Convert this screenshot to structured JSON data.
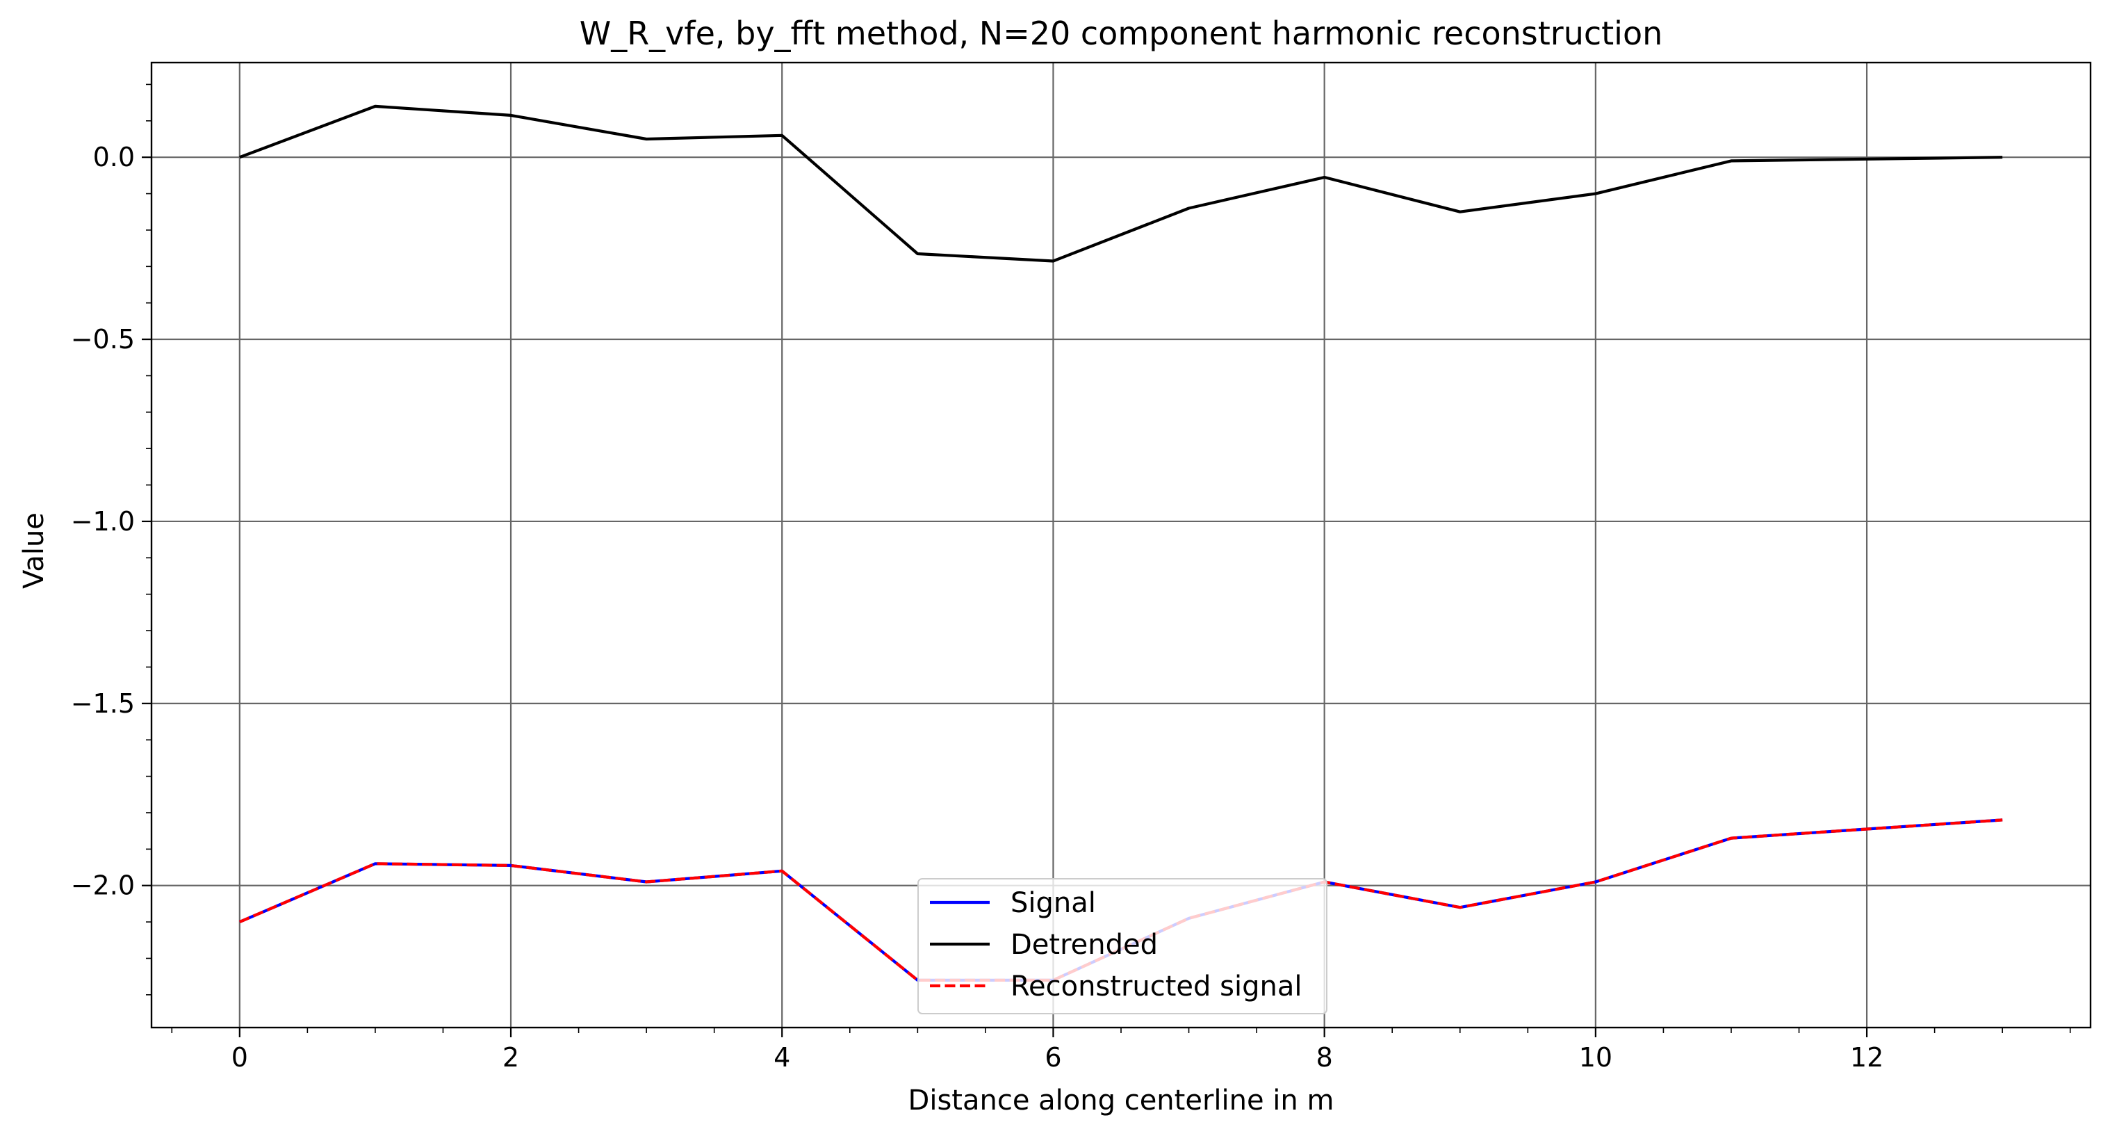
{
  "chart_data": {
    "type": "line",
    "title": "W_R_vfe, by_fft method, N=20 component harmonic reconstruction",
    "xlabel": "Distance along centerline in m",
    "ylabel": "Value",
    "xlim": [
      -0.65,
      13.65
    ],
    "ylim": [
      -2.39,
      0.26
    ],
    "x_ticks": [
      0,
      2,
      4,
      6,
      8,
      10,
      12
    ],
    "x_tick_labels": [
      "0",
      "2",
      "4",
      "6",
      "8",
      "10",
      "12"
    ],
    "y_ticks": [
      0.0,
      -0.5,
      -1.0,
      -1.5,
      -2.0
    ],
    "y_tick_labels": [
      "0.0",
      "−0.5",
      "−1.0",
      "−1.5",
      "−2.0"
    ],
    "x_minor_step": 0.5,
    "y_minor_step": 0.1,
    "grid": true,
    "legend_position": "lower-center",
    "x": [
      0,
      1,
      2,
      3,
      4,
      5,
      6,
      7,
      8,
      9,
      10,
      11,
      12,
      13
    ],
    "series": [
      {
        "name": "Signal",
        "color": "#0000ff",
        "style": "solid",
        "values": [
          -2.1,
          -1.94,
          -1.945,
          -1.99,
          -1.96,
          -2.26,
          -2.26,
          -2.09,
          -1.99,
          -2.06,
          -1.99,
          -1.87,
          -1.845,
          -1.82
        ]
      },
      {
        "name": "Detrended",
        "color": "#000000",
        "style": "solid",
        "values": [
          0.0,
          0.14,
          0.115,
          0.05,
          0.06,
          -0.265,
          -0.285,
          -0.14,
          -0.055,
          -0.15,
          -0.1,
          -0.01,
          -0.005,
          0.0
        ]
      },
      {
        "name": "Reconstructed signal",
        "color": "#ff0000",
        "style": "dashed",
        "values": [
          -2.1,
          -1.94,
          -1.945,
          -1.99,
          -1.96,
          -2.26,
          -2.26,
          -2.09,
          -1.99,
          -2.06,
          -1.99,
          -1.87,
          -1.845,
          -1.82
        ]
      }
    ]
  }
}
